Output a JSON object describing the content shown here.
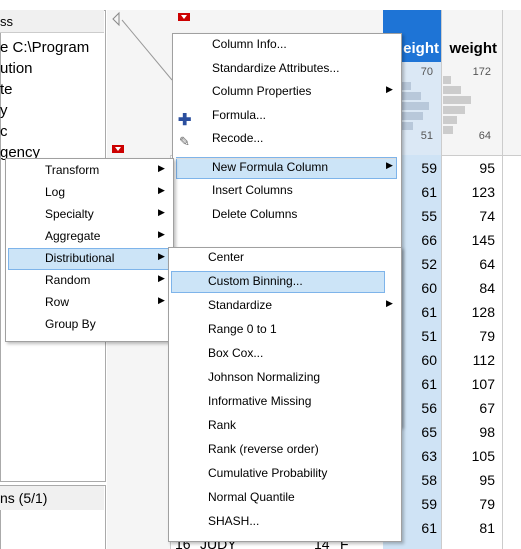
{
  "left_panel": {
    "header": "ss",
    "lines": [
      "e C:\\Program",
      "ution",
      "te",
      "y",
      "c",
      "gency"
    ],
    "footer": "ns (5/1)"
  },
  "grid": {
    "columns": [
      {
        "name": "eight",
        "hist_labels": [
          "70",
          "51"
        ],
        "values": [
          "59",
          "61",
          "55",
          "66",
          "52",
          "60",
          "61",
          "51",
          "60",
          "61",
          "56",
          "65",
          "63",
          "58",
          "59",
          "61"
        ]
      },
      {
        "name": "weight",
        "hist_labels": [
          "172",
          "64"
        ],
        "values": [
          "95",
          "123",
          "74",
          "145",
          "64",
          "84",
          "128",
          "79",
          "112",
          "107",
          "67",
          "98",
          "105",
          "95",
          "79",
          "81"
        ]
      }
    ],
    "last_row": [
      "16",
      "JUDY",
      "14",
      "F"
    ]
  },
  "menus": [
    {
      "highlighted": 5,
      "items": [
        {
          "label": "Column Info..."
        },
        {
          "label": "Standardize Attributes..."
        },
        {
          "label": "Column Properties",
          "submenu": true
        },
        {
          "label": "Formula..."
        },
        {
          "label": "Recode..."
        },
        {
          "label": "New Formula Column",
          "submenu": true
        },
        {
          "label": "Insert Columns"
        },
        {
          "label": "Delete Columns"
        }
      ]
    },
    {
      "highlighted": 4,
      "items": [
        {
          "label": "Transform",
          "submenu": true
        },
        {
          "label": "Log",
          "submenu": true
        },
        {
          "label": "Specialty",
          "submenu": true
        },
        {
          "label": "Aggregate",
          "submenu": true
        },
        {
          "label": "Distributional",
          "submenu": true
        },
        {
          "label": "Random",
          "submenu": true
        },
        {
          "label": "Row",
          "submenu": true
        },
        {
          "label": "Group By"
        }
      ]
    },
    {
      "highlighted": 1,
      "items": [
        {
          "label": "Center"
        },
        {
          "label": "Custom Binning..."
        },
        {
          "label": "Standardize",
          "submenu": true
        },
        {
          "label": "Range 0 to 1"
        },
        {
          "label": "Box Cox..."
        },
        {
          "label": "Johnson Normalizing"
        },
        {
          "label": "Informative Missing"
        },
        {
          "label": "Rank"
        },
        {
          "label": "Rank (reverse order)"
        },
        {
          "label": "Cumulative Probability"
        },
        {
          "label": "Normal Quantile"
        },
        {
          "label": "SHASH..."
        }
      ]
    }
  ]
}
